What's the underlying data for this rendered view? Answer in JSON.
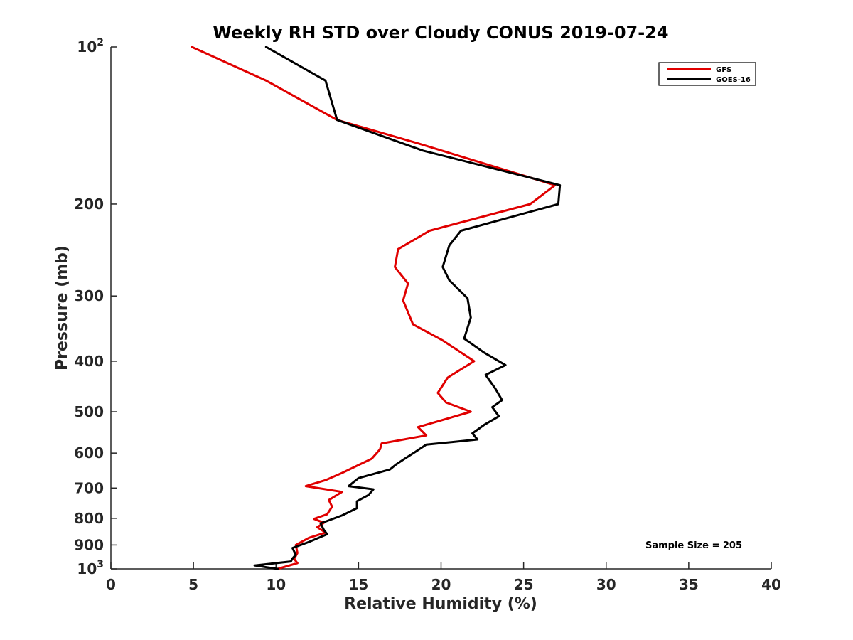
{
  "chart_data": {
    "type": "line",
    "title": "Weekly RH STD over Cloudy CONUS 2019-07-24",
    "xlabel": "Relative Humidity (%)",
    "ylabel": "Pressure (mb)",
    "xlim": [
      0,
      40
    ],
    "ylim": [
      100,
      1000
    ],
    "y_scale": "log",
    "y_reversed": true,
    "x_ticks": [
      0,
      5,
      10,
      15,
      20,
      25,
      30,
      35,
      40
    ],
    "x_tick_labels": [
      "0",
      "5",
      "10",
      "15",
      "20",
      "25",
      "30",
      "35",
      "40"
    ],
    "y_ticks": [
      100,
      200,
      300,
      400,
      500,
      600,
      700,
      800,
      900,
      1000
    ],
    "y_tick_labels": [
      {
        "base": "10",
        "exp": "2"
      },
      {
        "base": "200",
        "exp": ""
      },
      {
        "base": "300",
        "exp": ""
      },
      {
        "base": "400",
        "exp": ""
      },
      {
        "base": "500",
        "exp": ""
      },
      {
        "base": "600",
        "exp": ""
      },
      {
        "base": "700",
        "exp": ""
      },
      {
        "base": "800",
        "exp": ""
      },
      {
        "base": "900",
        "exp": ""
      },
      {
        "base": "10",
        "exp": "3"
      }
    ],
    "grid": false,
    "legend_position": "top-right",
    "annotation": "Sample Size = 205",
    "series": [
      {
        "name": "GFS",
        "color": "#e00000",
        "points": [
          [
            4.9,
            100
          ],
          [
            9.4,
            116
          ],
          [
            13.7,
            138
          ],
          [
            18.6,
            153
          ],
          [
            26.9,
            184
          ],
          [
            25.4,
            200
          ],
          [
            19.3,
            225
          ],
          [
            17.4,
            244
          ],
          [
            17.2,
            264
          ],
          [
            18.0,
            284
          ],
          [
            17.7,
            306
          ],
          [
            18.3,
            340
          ],
          [
            20.1,
            365
          ],
          [
            22.0,
            400
          ],
          [
            20.4,
            430
          ],
          [
            19.8,
            460
          ],
          [
            20.3,
            480
          ],
          [
            21.8,
            500
          ],
          [
            18.6,
            535
          ],
          [
            19.1,
            555
          ],
          [
            16.4,
            575
          ],
          [
            16.3,
            590
          ],
          [
            15.8,
            615
          ],
          [
            14.0,
            655
          ],
          [
            13.0,
            676
          ],
          [
            11.8,
            694
          ],
          [
            14.0,
            712
          ],
          [
            13.2,
            738
          ],
          [
            13.4,
            760
          ],
          [
            13.1,
            786
          ],
          [
            12.3,
            802
          ],
          [
            12.9,
            816
          ],
          [
            12.5,
            832
          ],
          [
            13.0,
            852
          ],
          [
            12.0,
            872
          ],
          [
            11.2,
            900
          ],
          [
            11.3,
            932
          ],
          [
            11.1,
            957
          ],
          [
            11.3,
            975
          ],
          [
            10.1,
            1000
          ]
        ]
      },
      {
        "name": "GOES-16",
        "color": "#000000",
        "points": [
          [
            9.4,
            100
          ],
          [
            13.0,
            116
          ],
          [
            13.7,
            138
          ],
          [
            18.9,
            158
          ],
          [
            27.2,
            184
          ],
          [
            27.1,
            200
          ],
          [
            21.2,
            225
          ],
          [
            20.5,
            240
          ],
          [
            20.1,
            264
          ],
          [
            20.5,
            280
          ],
          [
            21.6,
            303
          ],
          [
            21.8,
            330
          ],
          [
            21.4,
            362
          ],
          [
            22.6,
            385
          ],
          [
            23.9,
            407
          ],
          [
            22.7,
            425
          ],
          [
            23.3,
            452
          ],
          [
            23.7,
            475
          ],
          [
            23.1,
            490
          ],
          [
            23.5,
            510
          ],
          [
            22.6,
            530
          ],
          [
            21.9,
            550
          ],
          [
            22.2,
            565
          ],
          [
            19.1,
            578
          ],
          [
            18.5,
            595
          ],
          [
            17.8,
            615
          ],
          [
            17.3,
            630
          ],
          [
            16.9,
            645
          ],
          [
            15.0,
            670
          ],
          [
            14.4,
            694
          ],
          [
            15.9,
            704
          ],
          [
            15.6,
            722
          ],
          [
            14.9,
            742
          ],
          [
            14.9,
            765
          ],
          [
            14.0,
            790
          ],
          [
            12.7,
            818
          ],
          [
            12.9,
            842
          ],
          [
            13.1,
            858
          ],
          [
            12.0,
            888
          ],
          [
            11.0,
            912
          ],
          [
            11.2,
            940
          ],
          [
            11.0,
            955
          ],
          [
            10.9,
            968
          ],
          [
            8.7,
            985
          ],
          [
            10.1,
            1000
          ]
        ]
      }
    ]
  }
}
